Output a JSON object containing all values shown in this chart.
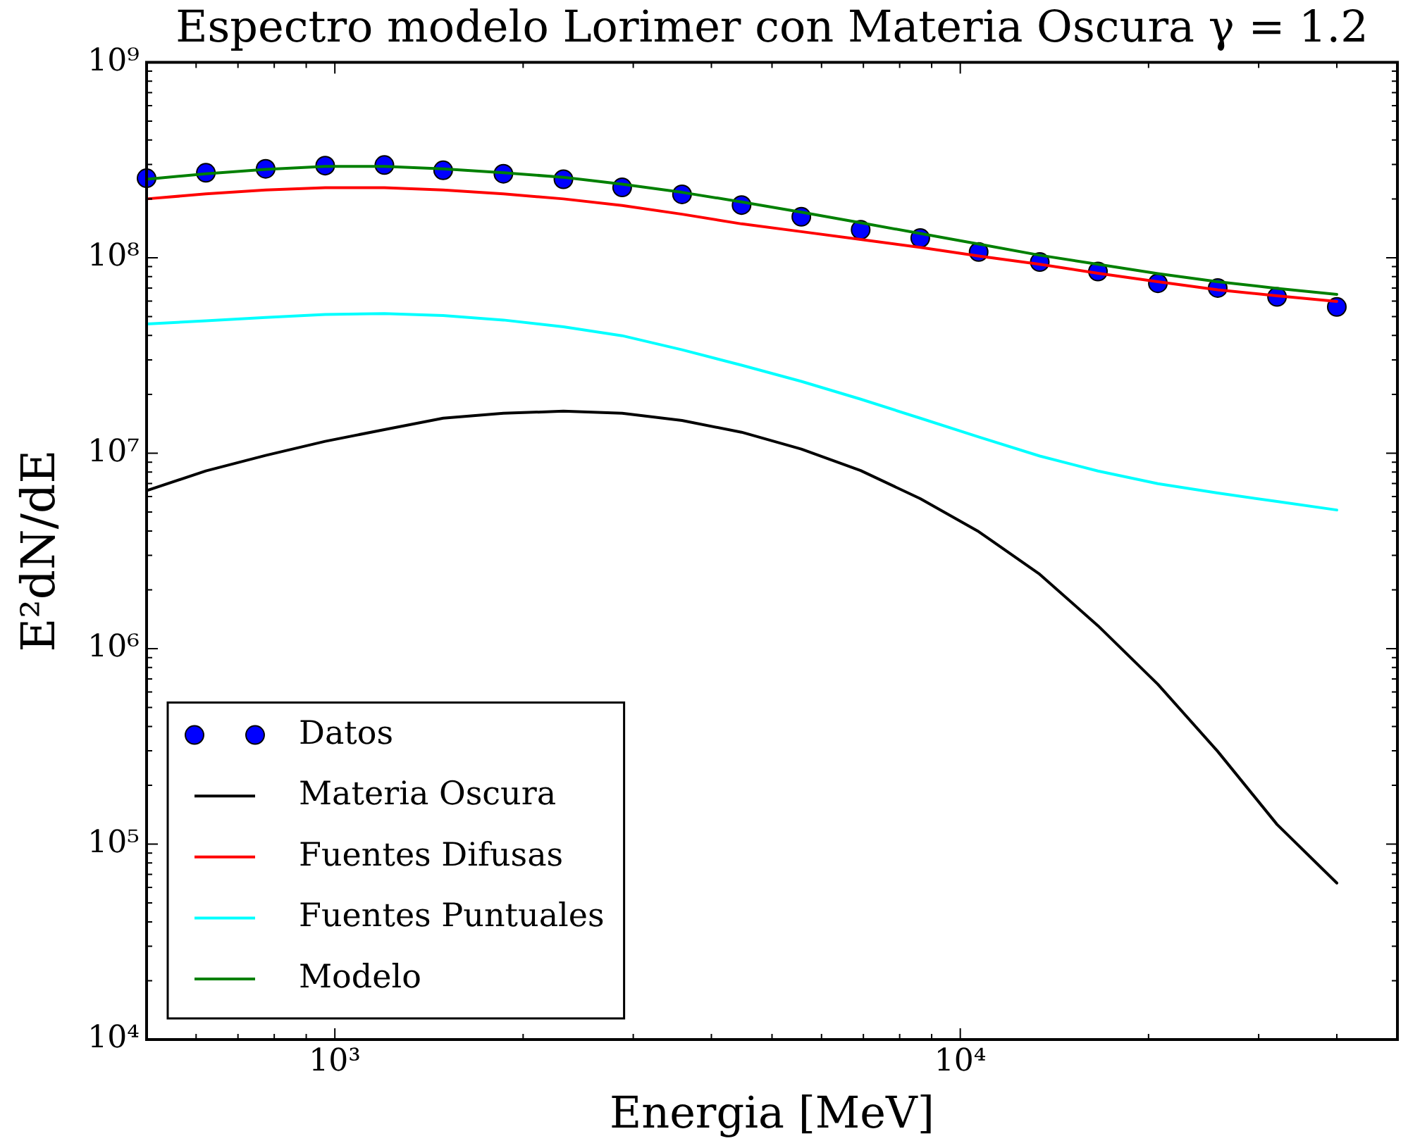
{
  "chart_data": {
    "type": "line",
    "title": "Espectro modelo Lorimer con Materia Oscura γ = 1.2",
    "xlabel": "Energia [MeV]",
    "ylabel": "E²dN/dE",
    "log": "xy",
    "legend": "bottom left",
    "x": [
      500,
      622,
      775,
      965,
      1200,
      1490,
      1860,
      2320,
      2880,
      3590,
      4470,
      5570,
      6930,
      8630,
      10700,
      13400,
      16600,
      20700,
      25800,
      32100,
      40000
    ],
    "series": [
      {
        "name": "Datos",
        "type": "scatter",
        "marker": "circle",
        "color": "#0000ff",
        "values": [
          255000000,
          272000000,
          285000000,
          296000000,
          298000000,
          280000000,
          269000000,
          252000000,
          229000000,
          211000000,
          186000000,
          162000000,
          139000000,
          126000000,
          107000000,
          95000000,
          85000000,
          74000000,
          70000000,
          63000000,
          56000000
        ]
      },
      {
        "name": "Materia Oscura",
        "color": "#000000",
        "values": [
          6430000,
          8110000,
          9740000,
          11500000,
          13200000,
          15100000,
          16000000,
          16400000,
          16000000,
          14700000,
          12800000,
          10500000,
          8150000,
          5850000,
          3970000,
          2400000,
          1310000,
          657000,
          298000,
          126000,
          63200
        ]
      },
      {
        "name": "Fuentes Difusas",
        "color": "#ff0000",
        "values": [
          200000000,
          212000000,
          222000000,
          228000000,
          228000000,
          222000000,
          212000000,
          200000000,
          185000000,
          167000000,
          149000000,
          136000000,
          124000000,
          113000000,
          102000000,
          92500000,
          83300000,
          75400000,
          68500000,
          63800000,
          59800000
        ]
      },
      {
        "name": "Fuentes Puntuales",
        "color": "#00ffff",
        "values": [
          45800000,
          47600000,
          49500000,
          51200000,
          51800000,
          50600000,
          48000000,
          44300000,
          39900000,
          33800000,
          28200000,
          23300000,
          18900000,
          15100000,
          12100000,
          9670000,
          8110000,
          6980000,
          6250000,
          5660000,
          5120000
        ]
      },
      {
        "name": "Modelo",
        "color": "#008000",
        "values": [
          252000000,
          269000000,
          283000000,
          293000000,
          293000000,
          285000000,
          272000000,
          258000000,
          238000000,
          216000000,
          193000000,
          171000000,
          151000000,
          133000000,
          117500000,
          103000000,
          92500000,
          82900000,
          75400000,
          69700000,
          64900000
        ]
      }
    ],
    "xlim": [
      500,
      50000
    ],
    "xticks": [
      {
        "value": 600,
        "label": null
      },
      {
        "value": 700,
        "label": null
      },
      {
        "value": 800,
        "label": null
      },
      {
        "value": 900,
        "label": null
      },
      {
        "value": 1000,
        "label": "10³"
      },
      {
        "value": 2000,
        "label": null
      },
      {
        "value": 3000,
        "label": null
      },
      {
        "value": 4000,
        "label": null
      },
      {
        "value": 5000,
        "label": null
      },
      {
        "value": 6000,
        "label": null
      },
      {
        "value": 7000,
        "label": null
      },
      {
        "value": 8000,
        "label": null
      },
      {
        "value": 9000,
        "label": null
      },
      {
        "value": 10000,
        "label": "10⁴"
      },
      {
        "value": 20000,
        "label": null
      },
      {
        "value": 30000,
        "label": null
      },
      {
        "value": 40000,
        "label": null
      }
    ],
    "ylim": [
      10000,
      1000000000
    ],
    "yticks": [
      {
        "value": 10000,
        "label": "10⁴"
      },
      {
        "value": 20000,
        "label": null
      },
      {
        "value": 30000,
        "label": null
      },
      {
        "value": 40000,
        "label": null
      },
      {
        "value": 50000,
        "label": null
      },
      {
        "value": 60000,
        "label": null
      },
      {
        "value": 70000,
        "label": null
      },
      {
        "value": 80000,
        "label": null
      },
      {
        "value": 90000,
        "label": null
      },
      {
        "value": 100000,
        "label": "10⁵"
      },
      {
        "value": 200000,
        "label": null
      },
      {
        "value": 300000,
        "label": null
      },
      {
        "value": 400000,
        "label": null
      },
      {
        "value": 500000,
        "label": null
      },
      {
        "value": 600000,
        "label": null
      },
      {
        "value": 700000,
        "label": null
      },
      {
        "value": 800000,
        "label": null
      },
      {
        "value": 900000,
        "label": null
      },
      {
        "value": 1000000,
        "label": "10⁶"
      },
      {
        "value": 2000000,
        "label": null
      },
      {
        "value": 3000000,
        "label": null
      },
      {
        "value": 4000000,
        "label": null
      },
      {
        "value": 5000000,
        "label": null
      },
      {
        "value": 6000000,
        "label": null
      },
      {
        "value": 7000000,
        "label": null
      },
      {
        "value": 8000000,
        "label": null
      },
      {
        "value": 9000000,
        "label": null
      },
      {
        "value": 10000000,
        "label": "10⁷"
      },
      {
        "value": 20000000,
        "label": null
      },
      {
        "value": 30000000,
        "label": null
      },
      {
        "value": 40000000,
        "label": null
      },
      {
        "value": 50000000,
        "label": null
      },
      {
        "value": 60000000,
        "label": null
      },
      {
        "value": 70000000,
        "label": null
      },
      {
        "value": 80000000,
        "label": null
      },
      {
        "value": 90000000,
        "label": null
      },
      {
        "value": 100000000,
        "label": "10⁸"
      },
      {
        "value": 200000000,
        "label": null
      },
      {
        "value": 300000000,
        "label": null
      },
      {
        "value": 400000000,
        "label": null
      },
      {
        "value": 500000000,
        "label": null
      },
      {
        "value": 600000000,
        "label": null
      },
      {
        "value": 700000000,
        "label": null
      },
      {
        "value": 800000000,
        "label": null
      },
      {
        "value": 900000000,
        "label": null
      },
      {
        "value": 1000000000,
        "label": "10⁹"
      }
    ]
  }
}
